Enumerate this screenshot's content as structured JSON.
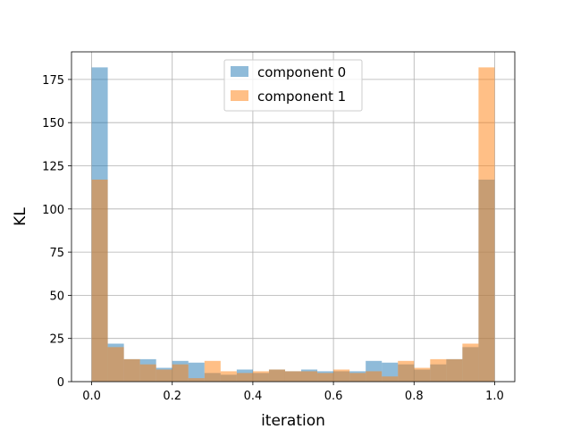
{
  "chart_data": {
    "type": "bar",
    "title": "",
    "xlabel": "iteration",
    "ylabel": "KL",
    "xlim": [
      -0.05,
      1.05
    ],
    "ylim": [
      0,
      191
    ],
    "grid": true,
    "legend_position": "top-center",
    "x_ticks": [
      0.0,
      0.2,
      0.4,
      0.6,
      0.8,
      1.0
    ],
    "x_tick_labels": [
      "0.0",
      "0.2",
      "0.4",
      "0.6",
      "0.8",
      "1.0"
    ],
    "y_ticks": [
      0,
      25,
      50,
      75,
      100,
      125,
      150,
      175
    ],
    "y_tick_labels": [
      "0",
      "25",
      "50",
      "75",
      "100",
      "125",
      "150",
      "175"
    ],
    "bin_edges": [
      0.0,
      0.04,
      0.08,
      0.12,
      0.16,
      0.2,
      0.24,
      0.28,
      0.32,
      0.36,
      0.4,
      0.44,
      0.48,
      0.52,
      0.56,
      0.6,
      0.64,
      0.68,
      0.72,
      0.76,
      0.8,
      0.84,
      0.88,
      0.92,
      0.96,
      1.0
    ],
    "series": [
      {
        "name": "component 0",
        "color": "#1f77b4",
        "opacity": 0.5,
        "values": [
          182,
          22,
          13,
          13,
          8,
          12,
          11,
          5,
          4,
          7,
          5,
          7,
          6,
          7,
          6,
          6,
          6,
          12,
          11,
          10,
          7,
          10,
          13,
          20,
          117
        ]
      },
      {
        "name": "component 1",
        "color": "#ff7f0e",
        "opacity": 0.5,
        "values": [
          117,
          20,
          13,
          10,
          7,
          10,
          2,
          12,
          6,
          5,
          6,
          7,
          6,
          6,
          5,
          7,
          5,
          6,
          3,
          12,
          8,
          13,
          13,
          22,
          182
        ]
      }
    ]
  }
}
